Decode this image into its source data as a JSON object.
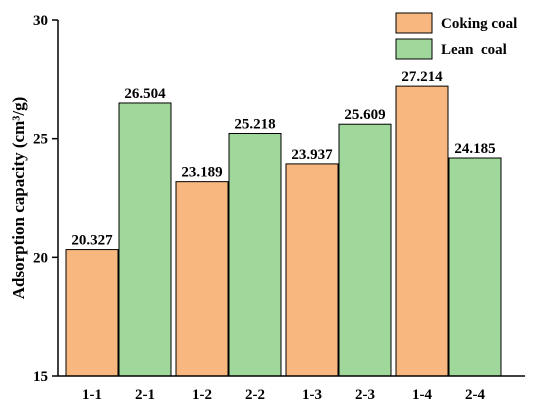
{
  "chart_data": {
    "type": "bar",
    "categories": [
      "1",
      "2",
      "3",
      "4"
    ],
    "series": [
      {
        "name": "Coking coal",
        "tick_labels": [
          "1-1",
          "1-2",
          "1-3",
          "1-4"
        ],
        "values": [
          20.327,
          23.189,
          23.937,
          27.214
        ],
        "value_labels": [
          "20.327",
          "23.189",
          "23.937",
          "27.214"
        ],
        "color": "#F7B77F"
      },
      {
        "name": "Lean  coal",
        "tick_labels": [
          "2-1",
          "2-2",
          "2-3",
          "2-4"
        ],
        "values": [
          26.504,
          25.218,
          25.609,
          24.185
        ],
        "value_labels": [
          "26.504",
          "25.218",
          "25.609",
          "24.185"
        ],
        "color": "#A0D89C"
      }
    ],
    "ylabel": "Adsorption capacity (cm³/g)",
    "xlabel": "",
    "title": "",
    "ylim": [
      15,
      30
    ],
    "yticks": [
      "15",
      "20",
      "25",
      "30"
    ],
    "grid": false,
    "legend_position": "top-right"
  }
}
